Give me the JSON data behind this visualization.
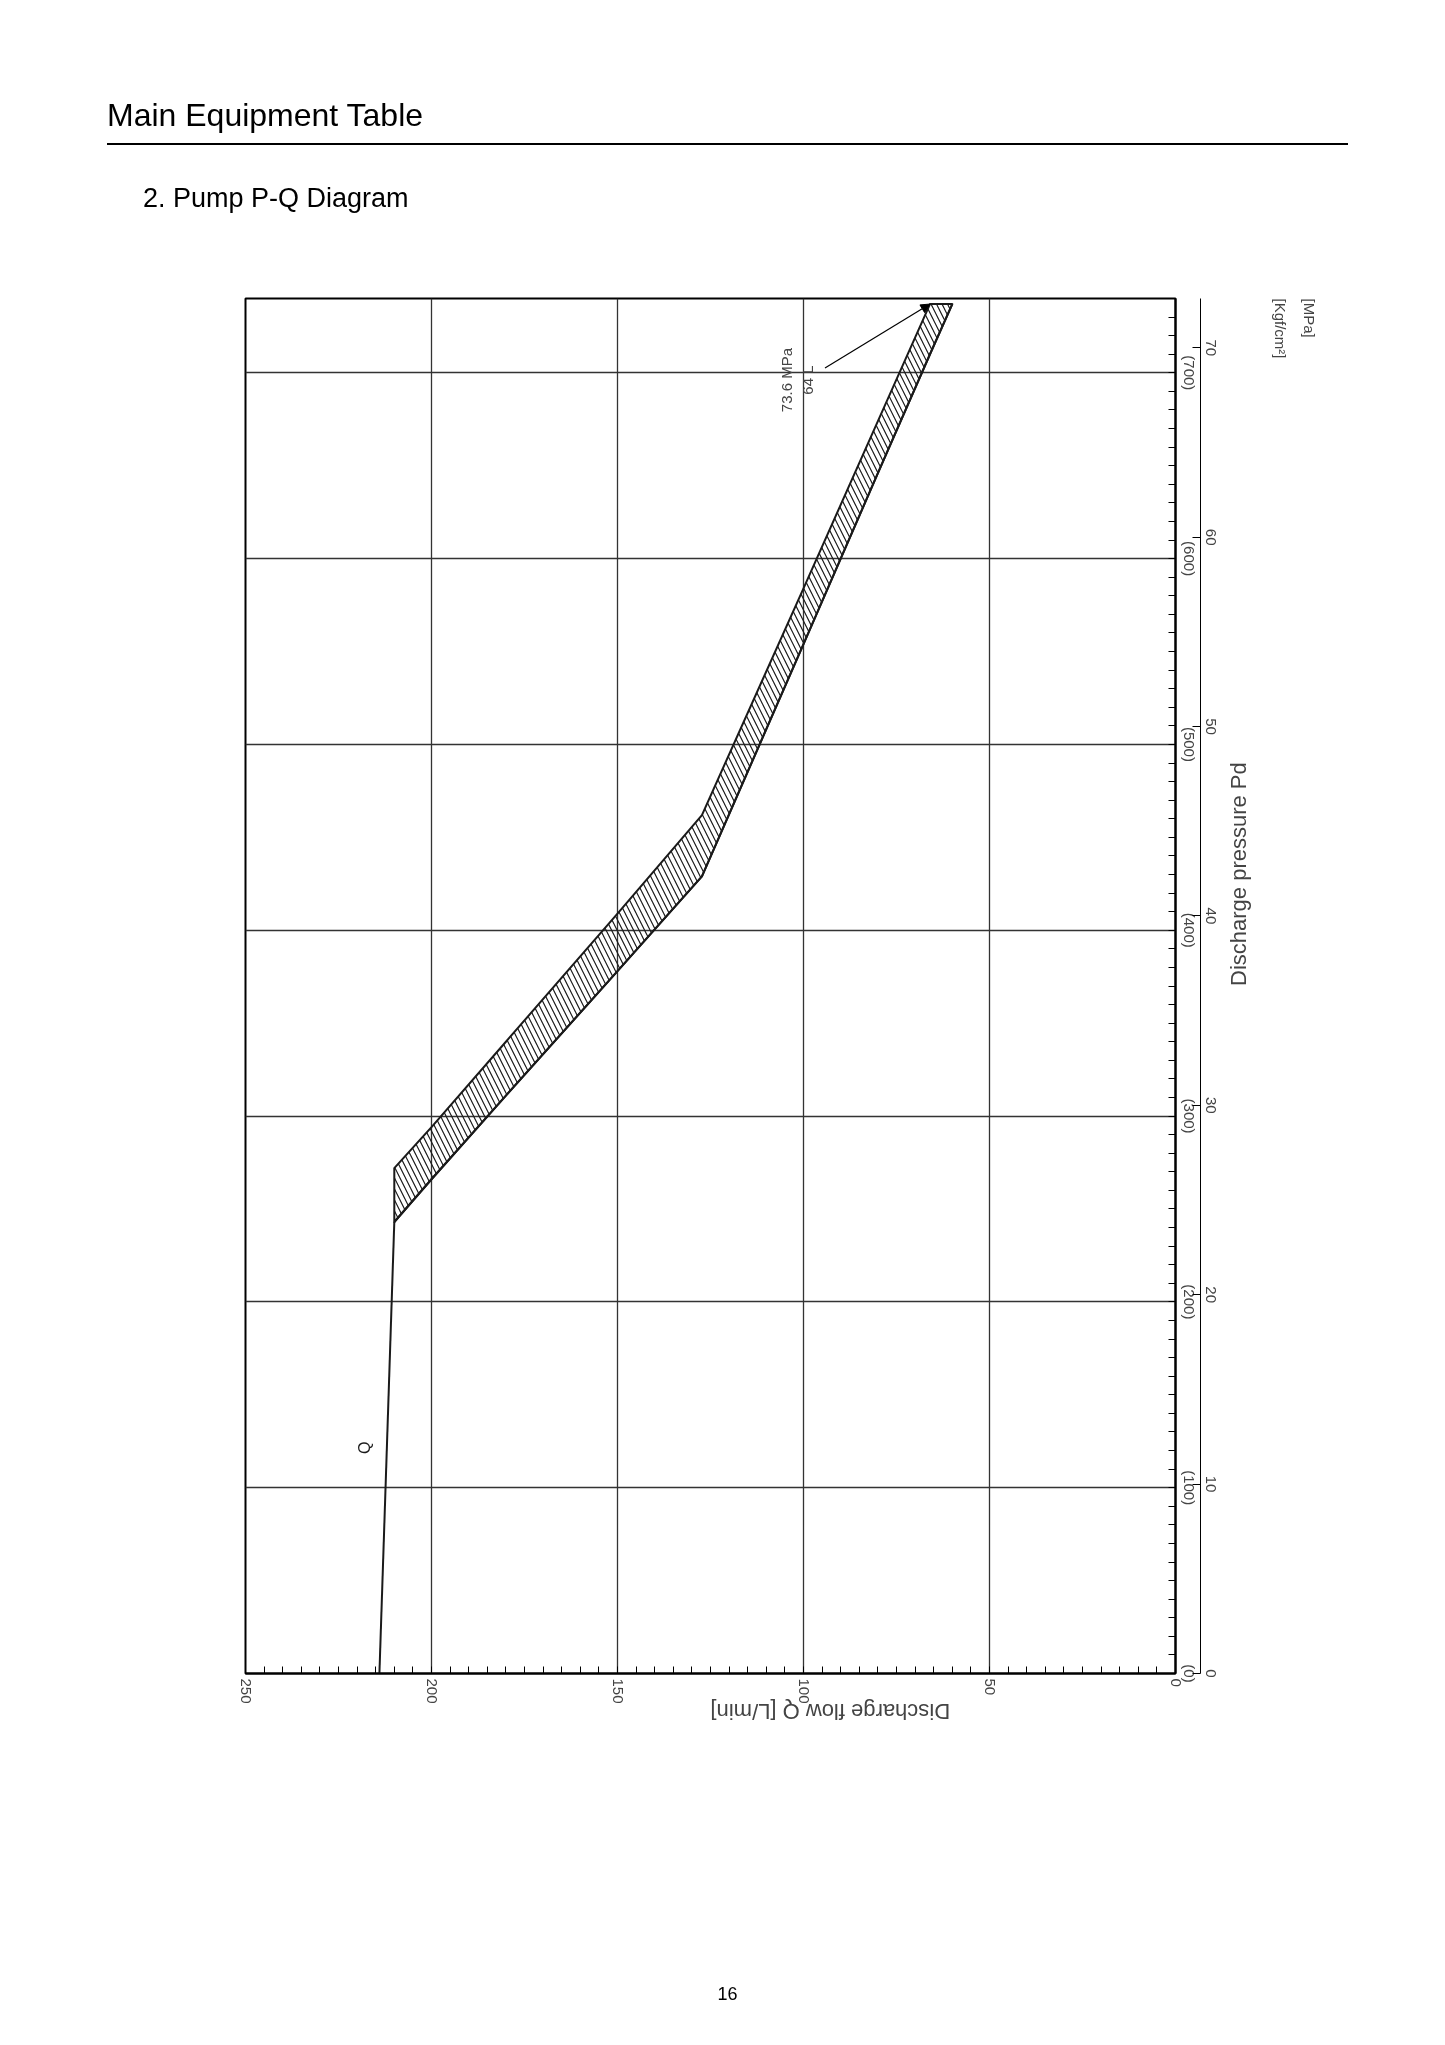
{
  "chart_data": {
    "type": "line",
    "title": "Main Equipment Table",
    "subtitle": "2. Pump P-Q Diagram",
    "xlabel": "Discharge flow Q [L/min]",
    "y2label": "Discharge pressure Pd",
    "xlim": [
      250,
      0
    ],
    "ylim": [
      0,
      740
    ],
    "y2lim": [
      0,
      72.6
    ],
    "xticks": [
      0,
      {
        "value": 5,
        "label": null
      },
      {
        "value": 10,
        "label": null
      },
      {
        "value": 15,
        "label": null
      },
      {
        "value": 20,
        "label": null
      },
      {
        "value": 25,
        "label": null
      },
      {
        "value": 30,
        "label": null
      },
      {
        "value": 35,
        "label": null
      },
      {
        "value": 40,
        "label": null
      },
      {
        "value": 45,
        "label": null
      },
      50,
      {
        "value": 55,
        "label": null
      },
      {
        "value": 60,
        "label": null
      },
      {
        "value": 65,
        "label": null
      },
      {
        "value": 70,
        "label": null
      },
      {
        "value": 75,
        "label": null
      },
      {
        "value": 80,
        "label": null
      },
      {
        "value": 85,
        "label": null
      },
      {
        "value": 90,
        "label": null
      },
      {
        "value": 95,
        "label": null
      },
      100,
      {
        "value": 105,
        "label": null
      },
      {
        "value": 110,
        "label": null
      },
      {
        "value": 115,
        "label": null
      },
      {
        "value": 120,
        "label": null
      },
      {
        "value": 125,
        "label": null
      },
      {
        "value": 130,
        "label": null
      },
      {
        "value": 135,
        "label": null
      },
      {
        "value": 140,
        "label": null
      },
      {
        "value": 145,
        "label": null
      },
      150,
      {
        "value": 155,
        "label": null
      },
      {
        "value": 160,
        "label": null
      },
      {
        "value": 165,
        "label": null
      },
      {
        "value": 170,
        "label": null
      },
      {
        "value": 175,
        "label": null
      },
      {
        "value": 180,
        "label": null
      },
      {
        "value": 185,
        "label": null
      },
      {
        "value": 190,
        "label": null
      },
      {
        "value": 195,
        "label": null
      },
      200,
      {
        "value": 205,
        "label": null
      },
      {
        "value": 210,
        "label": null
      },
      {
        "value": 215,
        "label": null
      },
      {
        "value": 220,
        "label": null
      },
      {
        "value": 225,
        "label": null
      },
      {
        "value": 230,
        "label": null
      },
      {
        "value": 235,
        "label": null
      },
      {
        "value": 240,
        "label": null
      },
      {
        "value": 245,
        "label": null
      },
      250
    ],
    "yticks": [
      {
        "value": 0,
        "label": "(0)"
      },
      {
        "value": 10,
        "label": null
      },
      {
        "value": 20,
        "label": null
      },
      {
        "value": 30,
        "label": null
      },
      {
        "value": 40,
        "label": null
      },
      {
        "value": 50,
        "label": null
      },
      {
        "value": 60,
        "label": null
      },
      {
        "value": 70,
        "label": null
      },
      {
        "value": 80,
        "label": null
      },
      {
        "value": 90,
        "label": null
      },
      {
        "value": 100,
        "label": "(100)"
      },
      {
        "value": 110,
        "label": null
      },
      {
        "value": 120,
        "label": null
      },
      {
        "value": 130,
        "label": null
      },
      {
        "value": 140,
        "label": null
      },
      {
        "value": 150,
        "label": null
      },
      {
        "value": 160,
        "label": null
      },
      {
        "value": 170,
        "label": null
      },
      {
        "value": 180,
        "label": null
      },
      {
        "value": 190,
        "label": null
      },
      {
        "value": 200,
        "label": "(200)"
      },
      {
        "value": 210,
        "label": null
      },
      {
        "value": 220,
        "label": null
      },
      {
        "value": 230,
        "label": null
      },
      {
        "value": 240,
        "label": null
      },
      {
        "value": 250,
        "label": null
      },
      {
        "value": 260,
        "label": null
      },
      {
        "value": 270,
        "label": null
      },
      {
        "value": 280,
        "label": null
      },
      {
        "value": 290,
        "label": null
      },
      {
        "value": 300,
        "label": "(300)"
      },
      {
        "value": 310,
        "label": null
      },
      {
        "value": 320,
        "label": null
      },
      {
        "value": 330,
        "label": null
      },
      {
        "value": 340,
        "label": null
      },
      {
        "value": 350,
        "label": null
      },
      {
        "value": 360,
        "label": null
      },
      {
        "value": 370,
        "label": null
      },
      {
        "value": 380,
        "label": null
      },
      {
        "value": 390,
        "label": null
      },
      {
        "value": 400,
        "label": "(400)"
      },
      {
        "value": 410,
        "label": null
      },
      {
        "value": 420,
        "label": null
      },
      {
        "value": 430,
        "label": null
      },
      {
        "value": 440,
        "label": null
      },
      {
        "value": 450,
        "label": null
      },
      {
        "value": 460,
        "label": null
      },
      {
        "value": 470,
        "label": null
      },
      {
        "value": 480,
        "label": null
      },
      {
        "value": 490,
        "label": null
      },
      {
        "value": 500,
        "label": "(500)"
      },
      {
        "value": 510,
        "label": null
      },
      {
        "value": 520,
        "label": null
      },
      {
        "value": 530,
        "label": null
      },
      {
        "value": 540,
        "label": null
      },
      {
        "value": 550,
        "label": null
      },
      {
        "value": 560,
        "label": null
      },
      {
        "value": 570,
        "label": null
      },
      {
        "value": 580,
        "label": null
      },
      {
        "value": 590,
        "label": null
      },
      {
        "value": 600,
        "label": "(600)"
      },
      {
        "value": 610,
        "label": null
      },
      {
        "value": 620,
        "label": null
      },
      {
        "value": 630,
        "label": null
      },
      {
        "value": 640,
        "label": null
      },
      {
        "value": 650,
        "label": null
      },
      {
        "value": 660,
        "label": null
      },
      {
        "value": 670,
        "label": null
      },
      {
        "value": 680,
        "label": null
      },
      {
        "value": 690,
        "label": null
      },
      {
        "value": 700,
        "label": "(700)"
      },
      {
        "value": 710,
        "label": null
      },
      {
        "value": 720,
        "label": null
      },
      {
        "value": 730,
        "label": null
      }
    ],
    "y2ticks": [
      0,
      10,
      20,
      30,
      40,
      50,
      60,
      70
    ],
    "grid": true,
    "series": [
      {
        "name": "Q",
        "color": "#1a1a1a",
        "x": [
          214,
          210
        ],
        "values": [
          0,
          243
        ]
      },
      {
        "color": "#1a1a1a",
        "x": [
          210,
          200,
          180,
          150,
          127.3,
          100,
          80,
          66,
          60
        ],
        "values": [
          243,
          266,
          311,
          378,
          429,
          554,
          646,
          710,
          737
        ],
        "lower": [
          243,
          266,
          311,
          378,
          429,
          554,
          646,
          710,
          737
        ],
        "upper": [
          272,
          294,
          340,
          409,
          462,
          584,
          674,
          737,
          737
        ]
      }
    ],
    "annotations": [
      "[Kgf/cm²]",
      "[MPa]",
      "16",
      {
        "text": "73.6 MPa\n64 L",
        "x": 66,
        "y": 737
      }
    ]
  }
}
